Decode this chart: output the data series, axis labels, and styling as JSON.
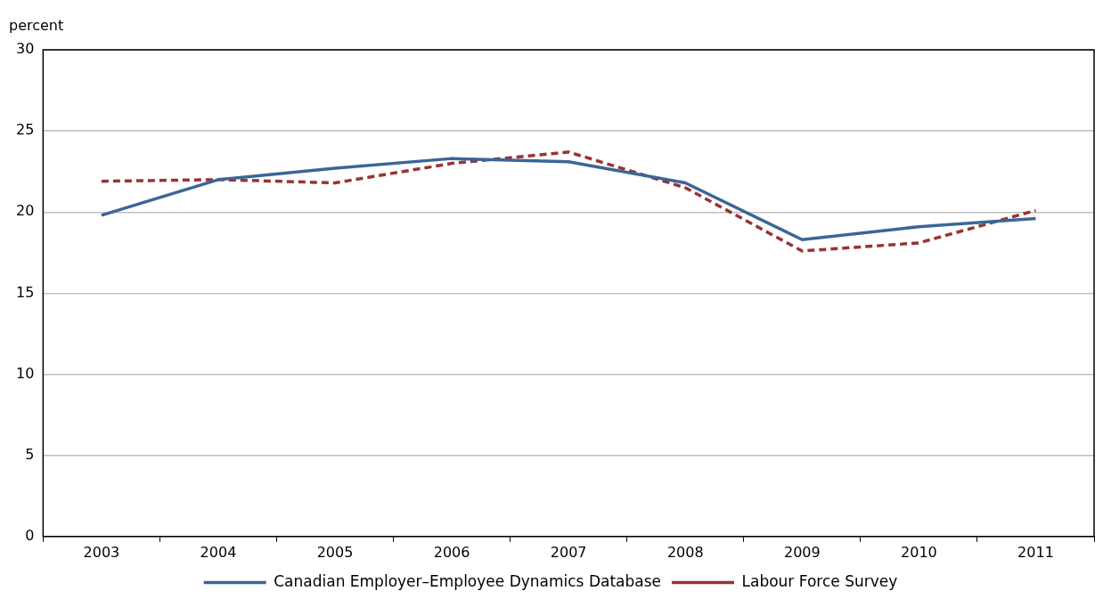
{
  "chart_data": {
    "type": "line",
    "ylabel": "percent",
    "categories": [
      "2003",
      "2004",
      "2005",
      "2006",
      "2007",
      "2008",
      "2009",
      "2010",
      "2011"
    ],
    "series": [
      {
        "name": "Canadian Employer–Employee Dynamics Database",
        "color": "#3b6696",
        "line_style": "solid",
        "values": [
          19.8,
          22.0,
          22.7,
          23.3,
          23.1,
          21.8,
          18.3,
          19.1,
          19.6
        ]
      },
      {
        "name": "Labour Force Survey",
        "color": "#993333",
        "line_style": "dashed",
        "values": [
          21.9,
          22.0,
          21.8,
          23.0,
          23.7,
          21.5,
          17.6,
          18.1,
          20.1
        ]
      }
    ],
    "ylim": [
      0,
      30
    ],
    "yticks": [
      0,
      5,
      10,
      15,
      20,
      25,
      30
    ],
    "grid": "y",
    "legend": "bottom",
    "marker": "none"
  }
}
